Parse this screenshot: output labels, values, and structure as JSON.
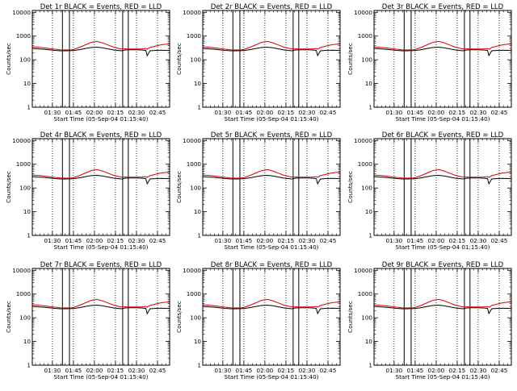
{
  "chart_data": [
    {
      "type": "line",
      "title": "Det 1r BLACK = Events, RED = LLD"
    },
    {
      "type": "line",
      "title": "Det 2r BLACK = Events, RED = LLD"
    },
    {
      "type": "line",
      "title": "Det 3r BLACK = Events, RED = LLD"
    },
    {
      "type": "line",
      "title": "Det 4r BLACK = Events, RED = LLD"
    },
    {
      "type": "line",
      "title": "Det 5r BLACK = Events, RED = LLD"
    },
    {
      "type": "line",
      "title": "Det 6r BLACK = Events, RED = LLD"
    },
    {
      "type": "line",
      "title": "Det 7r BLACK = Events, RED = LLD"
    },
    {
      "type": "line",
      "title": "Det 8r BLACK = Events, RED = LLD"
    },
    {
      "type": "line",
      "title": "Det 9r BLACK = Events, RED = LLD"
    }
  ],
  "shared": {
    "xlabel": "Start Time (05-Sep-04 01:15:40)",
    "ylabel": "Counts/sec",
    "x_ticks": [
      "01:30",
      "01:45",
      "02:00",
      "02:15",
      "02:30",
      "02:45"
    ],
    "x_tick_minutes": [
      14.33,
      29.33,
      44.33,
      59.33,
      74.33,
      89.33
    ],
    "xlim": [
      0,
      98
    ],
    "y_scale": "log",
    "ylim": [
      1,
      12000
    ],
    "y_ticks": [
      "1",
      "10",
      "100",
      "1000",
      "10000"
    ],
    "y_tick_values": [
      1,
      10,
      100,
      1000,
      10000
    ],
    "dotted_line_minutes": [
      14.33,
      29.33,
      44.33,
      59.33,
      74.33,
      89.33
    ],
    "solid_line_minutes": [
      21.5,
      26.5,
      64.5,
      68.5
    ],
    "series": [
      {
        "name": "Events",
        "color": "#000000",
        "x": [
          0,
          4,
          8,
          12,
          16,
          20,
          24,
          28,
          30,
          34,
          38,
          42,
          46,
          50,
          54,
          58,
          62,
          64,
          66,
          70,
          74,
          78,
          81,
          82,
          84,
          88,
          92,
          96,
          98
        ],
        "y": [
          300,
          290,
          280,
          265,
          250,
          240,
          240,
          245,
          250,
          270,
          300,
          330,
          340,
          320,
          290,
          260,
          245,
          240,
          260,
          265,
          265,
          260,
          250,
          150,
          240,
          250,
          255,
          250,
          245
        ]
      },
      {
        "name": "LLD",
        "color": "#e00000",
        "x": [
          0,
          4,
          8,
          12,
          16,
          20,
          24,
          28,
          30,
          34,
          38,
          42,
          46,
          50,
          54,
          58,
          62,
          64,
          66,
          70,
          74,
          78,
          81,
          82,
          84,
          88,
          92,
          96,
          98
        ],
        "y": [
          350,
          340,
          320,
          300,
          280,
          265,
          260,
          265,
          280,
          340,
          430,
          540,
          600,
          520,
          420,
          340,
          300,
          290,
          290,
          285,
          285,
          290,
          300,
          280,
          330,
          380,
          430,
          460,
          450
        ]
      }
    ]
  }
}
